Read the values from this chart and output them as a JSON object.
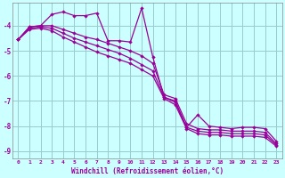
{
  "x": [
    0,
    1,
    2,
    3,
    4,
    5,
    6,
    7,
    8,
    9,
    10,
    11,
    12,
    13,
    14,
    15,
    16,
    17,
    18,
    19,
    20,
    21,
    22,
    23
  ],
  "line1": [
    -4.55,
    -4.05,
    -4.0,
    -3.55,
    -3.45,
    -3.6,
    -3.6,
    -3.5,
    -4.6,
    -4.6,
    -4.65,
    -3.3,
    -5.25,
    -6.85,
    -7.0,
    -8.05,
    -7.55,
    -8.0,
    -8.05,
    -8.1,
    -8.05,
    -8.05,
    -8.1,
    -8.6
  ],
  "line2": [
    -4.55,
    -4.05,
    -4.0,
    -4.0,
    -4.15,
    -4.3,
    -4.45,
    -4.55,
    -4.7,
    -4.85,
    -5.0,
    -5.2,
    -5.5,
    -6.75,
    -6.9,
    -7.9,
    -8.1,
    -8.15,
    -8.15,
    -8.2,
    -8.2,
    -8.2,
    -8.25,
    -8.7
  ],
  "line3": [
    -4.55,
    -4.1,
    -4.05,
    -4.1,
    -4.3,
    -4.5,
    -4.65,
    -4.8,
    -4.95,
    -5.1,
    -5.3,
    -5.55,
    -5.8,
    -6.85,
    -7.05,
    -8.05,
    -8.2,
    -8.25,
    -8.25,
    -8.3,
    -8.3,
    -8.3,
    -8.35,
    -8.75
  ],
  "line4": [
    -4.55,
    -4.15,
    -4.1,
    -4.2,
    -4.45,
    -4.65,
    -4.85,
    -5.05,
    -5.2,
    -5.35,
    -5.5,
    -5.75,
    -6.0,
    -6.9,
    -7.15,
    -8.1,
    -8.3,
    -8.35,
    -8.35,
    -8.4,
    -8.4,
    -8.4,
    -8.45,
    -8.8
  ],
  "color": "#990099",
  "bg_color": "#ccffff",
  "grid_color": "#99cccc",
  "xlabel": "Windchill (Refroidissement éolien,°C)",
  "ylim": [
    -9.3,
    -3.1
  ],
  "xlim": [
    -0.5,
    23.5
  ],
  "yticks": [
    -9,
    -8,
    -7,
    -6,
    -5,
    -4
  ],
  "xticks": [
    0,
    1,
    2,
    3,
    4,
    5,
    6,
    7,
    8,
    9,
    10,
    11,
    12,
    13,
    14,
    15,
    16,
    17,
    18,
    19,
    20,
    21,
    22,
    23
  ]
}
